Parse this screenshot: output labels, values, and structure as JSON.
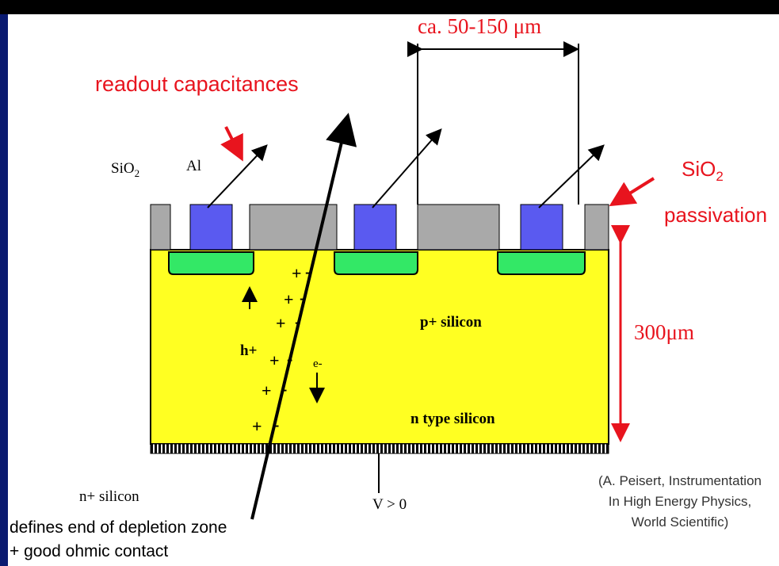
{
  "labels": {
    "pitch": "ca. 50-150 μm",
    "readout": "readout capacitances",
    "sio2_main": "SiO",
    "sio2_sub": "2",
    "al": "Al",
    "passivation_main": "SiO",
    "passivation_sub": "2",
    "passivation": "passivation",
    "thickness": "300μm",
    "p_silicon": "p+ silicon",
    "holes": "h+",
    "electrons": "e-",
    "n_silicon": "n type silicon",
    "n_plus_silicon": "n+ silicon",
    "voltage": "V > 0",
    "plus": "+",
    "minus": "-"
  },
  "citation": [
    "(A. Peisert, Instrumentation",
    "In High Energy Physics,",
    "World Scientific)"
  ],
  "note": [
    "defines end of depletion zone",
    "+ good ohmic contact"
  ]
}
